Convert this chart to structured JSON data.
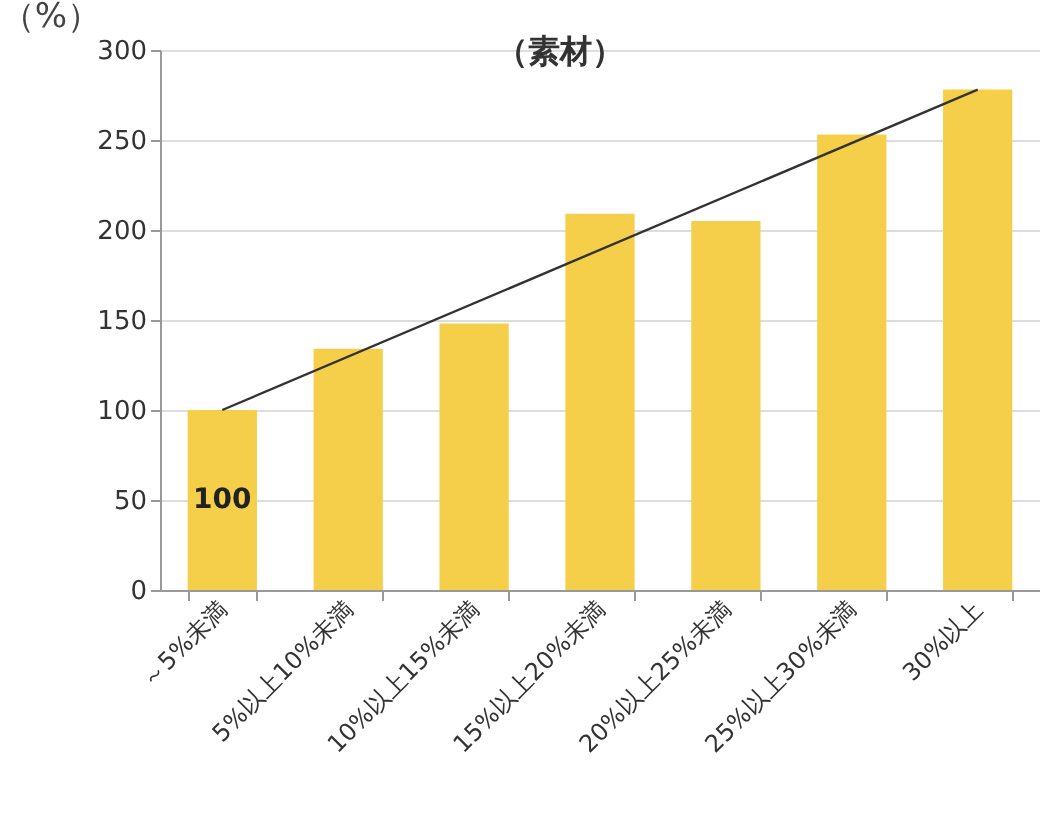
{
  "chart_data": {
    "type": "bar",
    "title": "（素材）",
    "ylabel": "（%）",
    "categories": [
      "～5%未満",
      "5%以上10%未満",
      "10%以上15%未満",
      "15%以上20%未満",
      "20%以上25%未満",
      "25%以上30%未満",
      "30%以上"
    ],
    "series": [
      {
        "color": "#f5cf4a",
        "values": [
          100,
          134,
          148,
          209,
          205,
          253,
          278
        ],
        "value_labels": [
          "100",
          null,
          null,
          null,
          null,
          null,
          null
        ]
      },
      {
        "type": "line",
        "color": "#333333",
        "x": [
          "～5%未満",
          "30%以上"
        ],
        "values": [
          100,
          278
        ]
      }
    ],
    "ylim": [
      0,
      300
    ],
    "yticks": [
      0,
      50,
      100,
      150,
      200,
      250,
      300
    ],
    "grid": "y"
  }
}
